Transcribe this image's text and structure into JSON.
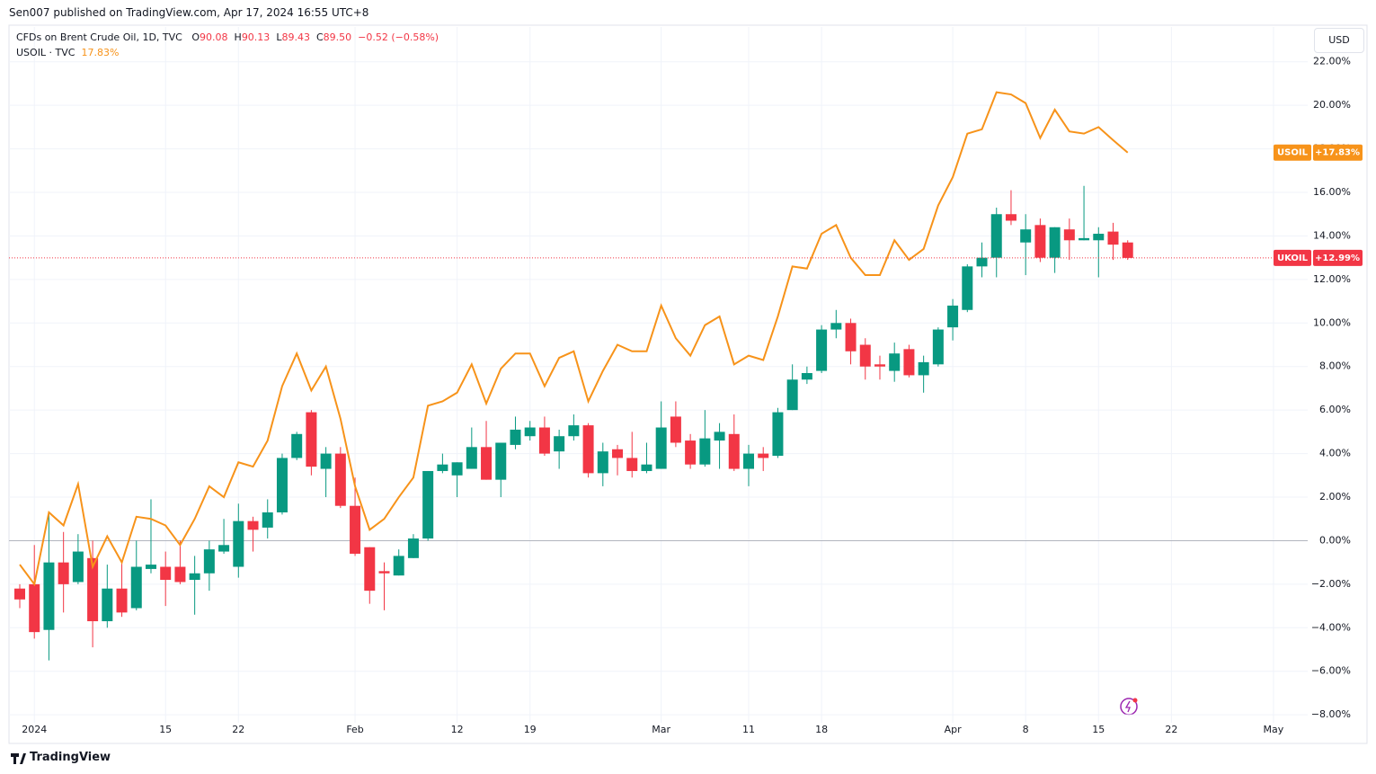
{
  "header": {
    "published": "Sen007 published on TradingView.com, Apr 17, 2024 16:55 UTC+8",
    "currency": "USD"
  },
  "legend": {
    "title": "CFDs on Brent Crude Oil, 1D, TVC",
    "ohlc": [
      {
        "k": "O",
        "v": "90.08"
      },
      {
        "k": "H",
        "v": "90.13"
      },
      {
        "k": "L",
        "v": "89.43"
      },
      {
        "k": "C",
        "v": "89.50"
      }
    ],
    "change": "−0.52 (−0.58%)",
    "compare": "USOIL · TVC",
    "compare_value": "17.83%"
  },
  "footer": {
    "brand": "TradingView"
  },
  "chart_data": {
    "type": "candlestick",
    "grid": true,
    "categories": [
      null,
      "2024",
      null,
      null,
      null,
      null,
      null,
      null,
      null,
      null,
      "15",
      null,
      null,
      null,
      null,
      "22",
      null,
      null,
      null,
      null,
      null,
      null,
      null,
      "Feb",
      null,
      null,
      null,
      null,
      null,
      null,
      "12",
      null,
      null,
      null,
      null,
      "19",
      null,
      null,
      null,
      null,
      null,
      null,
      null,
      null,
      "Mar",
      null,
      null,
      null,
      null,
      null,
      "11",
      null,
      null,
      null,
      null,
      "18",
      null,
      null,
      null,
      null,
      null,
      null,
      null,
      null,
      "Apr",
      null,
      null,
      null,
      null,
      "8",
      null,
      null,
      null,
      null,
      "15",
      null,
      null,
      null,
      null,
      "22",
      null,
      null,
      null,
      null,
      null,
      null,
      "May"
    ],
    "ylim": [
      -8.2,
      23.6
    ],
    "yticks": [
      {
        "value": 22,
        "label": "22.00%"
      },
      {
        "value": 20,
        "label": "20.00%"
      },
      {
        "value": 18,
        "label": "18.00%"
      },
      {
        "value": 16,
        "label": "16.00%"
      },
      {
        "value": 14,
        "label": "14.00%"
      },
      {
        "value": 12,
        "label": "12.00%"
      },
      {
        "value": 10,
        "label": "10.00%"
      },
      {
        "value": 8,
        "label": "8.00%"
      },
      {
        "value": 6,
        "label": "6.00%"
      },
      {
        "value": 4,
        "label": "4.00%"
      },
      {
        "value": 2,
        "label": "2.00%"
      },
      {
        "value": 0,
        "label": "0.00%"
      },
      {
        "value": -2,
        "label": "−2.00%"
      },
      {
        "value": -4,
        "label": "−4.00%"
      },
      {
        "value": -6,
        "label": "−6.00%"
      },
      {
        "value": -8,
        "label": "−8.00%"
      }
    ],
    "series": [
      {
        "name": "UKOIL",
        "type": "candlestick",
        "up_color": "#089981",
        "down_color": "#f23645",
        "last_label": "+12.99%",
        "open": [
          -2.2,
          -2.0,
          -4.1,
          -1.0,
          -1.9,
          -0.8,
          -3.7,
          -2.2,
          -3.1,
          -1.3,
          -1.2,
          -1.2,
          -1.8,
          -1.5,
          -0.5,
          -1.2,
          0.9,
          0.6,
          1.3,
          3.8,
          5.9,
          3.3,
          4.0,
          1.6,
          -0.3,
          -1.4,
          -1.6,
          -0.8,
          0.1,
          3.2,
          3.0,
          3.3,
          4.3,
          2.8,
          4.4,
          4.8,
          5.2,
          4.1,
          4.8,
          5.3,
          3.1,
          4.2,
          3.8,
          3.2,
          3.3,
          5.7,
          4.6,
          3.5,
          4.6,
          4.9,
          3.3,
          4.0,
          3.9,
          6.0,
          7.4,
          7.8,
          9.7,
          10.0,
          9.0,
          8.1,
          7.8,
          8.8,
          7.6,
          8.1,
          9.8,
          10.6,
          12.6,
          13.0,
          15.0,
          13.7,
          14.5,
          13.0,
          14.3,
          13.8,
          13.8,
          14.2,
          13.7,
          null,
          null,
          null,
          null,
          null,
          null,
          null,
          null,
          null,
          null
        ],
        "high": [
          -2.0,
          -0.2,
          1.3,
          0.4,
          0.3,
          0.0,
          -1.1,
          -1.0,
          0.0,
          1.9,
          -0.5,
          0.0,
          -0.7,
          0.0,
          1.0,
          1.7,
          1.1,
          1.9,
          4.0,
          5.0,
          6.0,
          4.3,
          4.3,
          2.9,
          -0.3,
          -1.0,
          -0.4,
          0.3,
          3.2,
          4.0,
          3.6,
          5.2,
          5.5,
          4.5,
          5.7,
          5.5,
          5.7,
          5.1,
          5.8,
          5.4,
          4.5,
          4.4,
          5.0,
          4.5,
          6.4,
          6.4,
          4.9,
          6.0,
          5.4,
          5.8,
          4.4,
          4.3,
          6.1,
          8.1,
          8.0,
          9.9,
          10.6,
          10.2,
          9.3,
          8.5,
          9.1,
          9.0,
          8.5,
          9.8,
          11.1,
          12.7,
          13.7,
          15.3,
          16.1,
          15.0,
          14.8,
          14.4,
          14.8,
          16.3,
          14.4,
          14.6,
          13.8,
          null,
          null,
          null,
          null,
          null,
          null,
          null,
          null,
          null,
          null
        ],
        "low": [
          -3.1,
          -4.5,
          -5.5,
          -3.3,
          -2.0,
          -4.9,
          -4.0,
          -3.5,
          -3.2,
          -1.5,
          -3.0,
          -2.0,
          -3.4,
          -2.3,
          -0.6,
          -1.7,
          -0.5,
          0.1,
          1.2,
          3.7,
          3.0,
          2.0,
          1.5,
          -0.7,
          -2.9,
          -3.2,
          -1.6,
          -0.8,
          0.0,
          3.1,
          2.0,
          3.3,
          2.8,
          2.0,
          4.2,
          4.6,
          3.9,
          3.3,
          4.6,
          2.9,
          2.5,
          3.0,
          2.9,
          3.1,
          3.3,
          4.3,
          3.3,
          3.4,
          3.3,
          3.2,
          2.5,
          3.2,
          3.8,
          6.0,
          7.2,
          7.7,
          9.3,
          8.1,
          7.4,
          7.4,
          7.3,
          7.5,
          6.8,
          8.0,
          9.2,
          10.5,
          12.1,
          12.1,
          14.5,
          12.2,
          12.8,
          12.3,
          12.9,
          13.8,
          12.1,
          12.9,
          12.9,
          null,
          null,
          null,
          null,
          null,
          null,
          null,
          null,
          null,
          null
        ],
        "close": [
          -2.7,
          -4.2,
          -1.0,
          -2.0,
          -0.5,
          -3.7,
          -2.2,
          -3.3,
          -1.2,
          -1.1,
          -1.8,
          -1.9,
          -1.5,
          -0.4,
          -0.2,
          0.9,
          0.5,
          1.3,
          3.8,
          4.9,
          3.4,
          4.0,
          1.6,
          -0.6,
          -2.3,
          -1.5,
          -0.7,
          0.1,
          3.2,
          3.5,
          3.6,
          4.3,
          2.8,
          4.5,
          5.1,
          5.2,
          4.0,
          4.8,
          5.3,
          3.1,
          4.1,
          3.8,
          3.2,
          3.5,
          5.2,
          4.5,
          3.5,
          4.7,
          5.0,
          3.3,
          4.0,
          3.8,
          5.9,
          7.4,
          7.7,
          9.7,
          10.0,
          8.7,
          8.0,
          8.0,
          8.6,
          7.6,
          8.2,
          9.7,
          10.8,
          12.6,
          13.0,
          15.0,
          14.7,
          14.3,
          13.0,
          14.4,
          13.8,
          13.9,
          14.1,
          13.6,
          12.99,
          null,
          null,
          null,
          null,
          null,
          null,
          null,
          null,
          null,
          null
        ]
      },
      {
        "name": "USOIL",
        "type": "line",
        "color": "#f7931a",
        "last_label": "+17.83%",
        "values": [
          -1.1,
          -2.0,
          1.3,
          0.7,
          2.6,
          -1.2,
          0.2,
          -1.0,
          1.1,
          1.0,
          0.7,
          -0.2,
          1.0,
          2.5,
          2.0,
          3.6,
          3.4,
          4.6,
          7.1,
          8.6,
          6.9,
          8.0,
          5.6,
          2.5,
          0.5,
          1.0,
          2.0,
          2.9,
          6.2,
          6.4,
          6.8,
          8.1,
          6.3,
          7.9,
          8.6,
          8.6,
          7.1,
          8.4,
          8.7,
          6.4,
          7.8,
          9.0,
          8.7,
          8.7,
          10.8,
          9.3,
          8.5,
          9.9,
          10.3,
          8.1,
          8.5,
          8.3,
          10.3,
          12.6,
          12.5,
          14.1,
          14.5,
          13.0,
          12.2,
          12.2,
          13.8,
          12.9,
          13.4,
          15.4,
          16.7,
          18.7,
          18.9,
          20.6,
          20.5,
          20.1,
          18.5,
          19.8,
          18.8,
          18.7,
          19.0,
          18.4,
          17.83,
          null,
          null,
          null,
          null,
          null,
          null,
          null,
          null,
          null,
          null
        ]
      }
    ]
  }
}
